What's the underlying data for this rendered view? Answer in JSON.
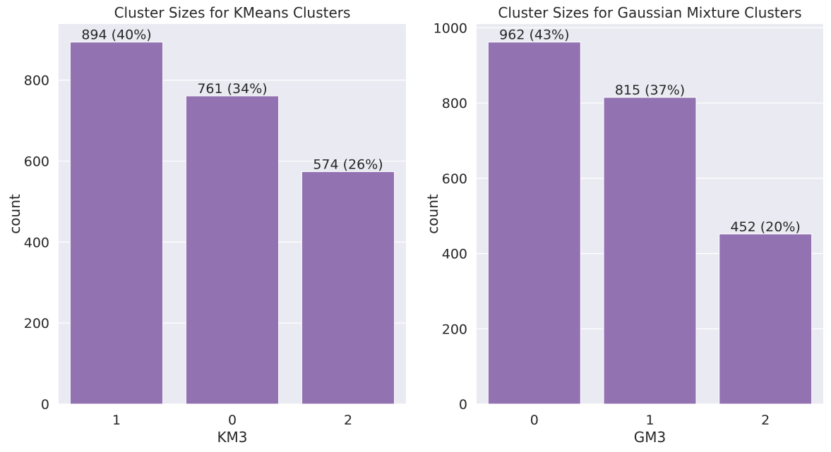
{
  "chart_data": [
    {
      "type": "bar",
      "title": "Cluster Sizes for KMeans Clusters",
      "xlabel": "KM3",
      "ylabel": "count",
      "categories": [
        "1",
        "0",
        "2"
      ],
      "values": [
        894,
        761,
        574
      ],
      "bar_labels": [
        "894 (40%)",
        "761 (34%)",
        "574 (26%)"
      ],
      "ylim": [
        0,
        938.7
      ],
      "yticks": [
        0,
        200,
        400,
        600,
        800
      ],
      "ytick_labels": [
        "0",
        "200",
        "400",
        "600",
        "800"
      ],
      "grid": true,
      "bar_color": "#9372b2",
      "background_color": "#eaeaf2"
    },
    {
      "type": "bar",
      "title": "Cluster Sizes for Gaussian Mixture Clusters",
      "xlabel": "GM3",
      "ylabel": "count",
      "categories": [
        "0",
        "1",
        "2"
      ],
      "values": [
        962,
        815,
        452
      ],
      "bar_labels": [
        "962 (43%)",
        "815 (37%)",
        "452 (20%)"
      ],
      "ylim": [
        0,
        1010.1
      ],
      "yticks": [
        0,
        200,
        400,
        600,
        800,
        1000
      ],
      "ytick_labels": [
        "0",
        "200",
        "400",
        "600",
        "800",
        "1000"
      ],
      "grid": true,
      "bar_color": "#9372b2",
      "background_color": "#eaeaf2"
    }
  ]
}
